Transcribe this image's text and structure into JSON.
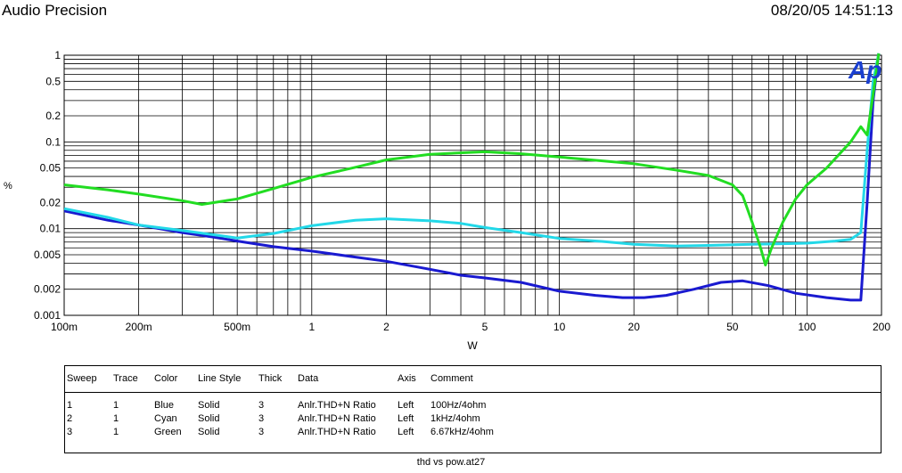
{
  "header": {
    "title": "Audio Precision",
    "datetime": "08/20/05 14:51:13"
  },
  "logo": {
    "text": "Ap"
  },
  "chart_data": {
    "type": "line",
    "title": "",
    "xlabel": "W",
    "ylabel": "%",
    "xscale": "log",
    "yscale": "log",
    "xlim": [
      0.1,
      200
    ],
    "ylim": [
      0.001,
      1
    ],
    "grid": true,
    "x_ticks": [
      {
        "v": 0.1,
        "label": "100m"
      },
      {
        "v": 0.2,
        "label": "200m"
      },
      {
        "v": 0.5,
        "label": "500m"
      },
      {
        "v": 1,
        "label": "1"
      },
      {
        "v": 2,
        "label": "2"
      },
      {
        "v": 5,
        "label": "5"
      },
      {
        "v": 10,
        "label": "10"
      },
      {
        "v": 20,
        "label": "20"
      },
      {
        "v": 50,
        "label": "50"
      },
      {
        "v": 100,
        "label": "100"
      },
      {
        "v": 200,
        "label": "200"
      }
    ],
    "y_ticks": [
      {
        "v": 1,
        "label": "1"
      },
      {
        "v": 0.5,
        "label": "0.5"
      },
      {
        "v": 0.2,
        "label": "0.2"
      },
      {
        "v": 0.1,
        "label": "0.1"
      },
      {
        "v": 0.05,
        "label": "0.05"
      },
      {
        "v": 0.02,
        "label": "0.02"
      },
      {
        "v": 0.01,
        "label": "0.01"
      },
      {
        "v": 0.005,
        "label": "0.005"
      },
      {
        "v": 0.002,
        "label": "0.002"
      },
      {
        "v": 0.001,
        "label": "0.001"
      }
    ],
    "series": [
      {
        "name": "100Hz/4ohm",
        "color": "#1a1ad0",
        "x": [
          0.1,
          0.15,
          0.2,
          0.3,
          0.4,
          0.5,
          0.7,
          1,
          1.5,
          2,
          3,
          4,
          5,
          7,
          10,
          14,
          18,
          22,
          27,
          35,
          45,
          55,
          70,
          90,
          120,
          150,
          165,
          175,
          185,
          195
        ],
        "y": [
          0.016,
          0.0125,
          0.011,
          0.009,
          0.008,
          0.0072,
          0.0062,
          0.0055,
          0.0047,
          0.0042,
          0.0034,
          0.0029,
          0.0027,
          0.0024,
          0.0019,
          0.0017,
          0.0016,
          0.0016,
          0.0017,
          0.002,
          0.0024,
          0.0025,
          0.0022,
          0.0018,
          0.0016,
          0.0015,
          0.0015,
          0.02,
          0.3,
          1.05
        ]
      },
      {
        "name": "1kHz/4ohm",
        "color": "#22d8e8",
        "x": [
          0.1,
          0.15,
          0.2,
          0.3,
          0.4,
          0.5,
          0.7,
          1,
          1.5,
          2,
          3,
          4,
          5,
          7,
          10,
          15,
          20,
          30,
          40,
          60,
          80,
          100,
          130,
          150,
          165,
          175,
          185,
          195
        ],
        "y": [
          0.017,
          0.0135,
          0.011,
          0.0095,
          0.0085,
          0.0078,
          0.0088,
          0.0108,
          0.0125,
          0.013,
          0.0123,
          0.0115,
          0.0103,
          0.009,
          0.0077,
          0.0071,
          0.0066,
          0.0063,
          0.0064,
          0.0066,
          0.0067,
          0.0068,
          0.0072,
          0.0075,
          0.009,
          0.08,
          0.5,
          1.05
        ]
      },
      {
        "name": "6.67kHz/4ohm",
        "color": "#22dd22",
        "x": [
          0.1,
          0.15,
          0.2,
          0.3,
          0.36,
          0.5,
          0.7,
          1,
          1.5,
          2,
          3,
          5,
          7,
          10,
          20,
          30,
          40,
          50,
          55,
          60,
          65,
          68,
          72,
          80,
          90,
          100,
          120,
          150,
          165,
          175,
          185,
          195
        ],
        "y": [
          0.032,
          0.028,
          0.025,
          0.021,
          0.019,
          0.022,
          0.029,
          0.039,
          0.051,
          0.062,
          0.072,
          0.077,
          0.073,
          0.067,
          0.056,
          0.047,
          0.041,
          0.032,
          0.024,
          0.012,
          0.006,
          0.0038,
          0.006,
          0.012,
          0.022,
          0.032,
          0.05,
          0.1,
          0.15,
          0.12,
          0.35,
          1.05
        ]
      }
    ]
  },
  "legend": {
    "headers": [
      "Sweep",
      "Trace",
      "Color",
      "Line Style",
      "Thick",
      "Data",
      "Axis",
      "Comment"
    ],
    "rows": [
      [
        "1",
        "1",
        "Blue",
        "Solid",
        "3",
        "Anlr.THD+N Ratio",
        "Left",
        "100Hz/4ohm"
      ],
      [
        "2",
        "1",
        "Cyan",
        "Solid",
        "3",
        "Anlr.THD+N Ratio",
        "Left",
        "1kHz/4ohm"
      ],
      [
        "3",
        "1",
        "Green",
        "Solid",
        "3",
        "Anlr.THD+N Ratio",
        "Left",
        "6.67kHz/4ohm"
      ]
    ]
  },
  "footer": {
    "filename": "thd vs pow.at27"
  }
}
